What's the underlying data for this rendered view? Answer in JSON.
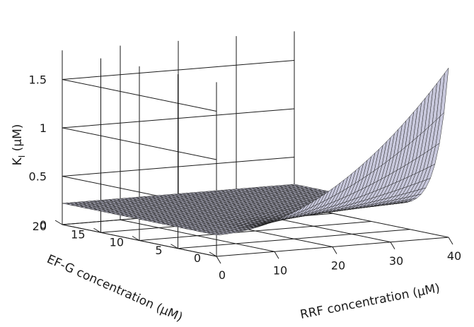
{
  "chart_data": {
    "type": "surface",
    "zlabel_main": "K",
    "zlabel_sub": "I",
    "zlabel_unit": " (μM)",
    "ylabel": "EF-G concentration (μM)",
    "xlabel": "RRF concentration (μM)",
    "x_ticks": [
      "0",
      "10",
      "20",
      "30",
      "40"
    ],
    "x_tick_values": [
      0,
      10,
      20,
      30,
      40
    ],
    "y_ticks": [
      "0",
      "5",
      "10",
      "15",
      "20"
    ],
    "y_tick_values": [
      0,
      5,
      10,
      15,
      20
    ],
    "z_ticks": [
      "0",
      "0.5",
      "1",
      "1.5"
    ],
    "z_tick_values": [
      0,
      0.5,
      1,
      1.5
    ],
    "xlim": [
      0,
      40
    ],
    "ylim": [
      0,
      20
    ],
    "zlim": [
      0,
      1.8
    ],
    "grid": true,
    "surface_color": "#c8c8dc",
    "edge_color": "#222222",
    "surface_samples": [
      {
        "rrf": 0,
        "efg": 20,
        "ki": 0.22
      },
      {
        "rrf": 0,
        "efg": 0,
        "ki": 0.22
      },
      {
        "rrf": 40,
        "efg": 20,
        "ki": 0.22
      },
      {
        "rrf": 40,
        "efg": 0,
        "ki": 1.75
      }
    ]
  }
}
